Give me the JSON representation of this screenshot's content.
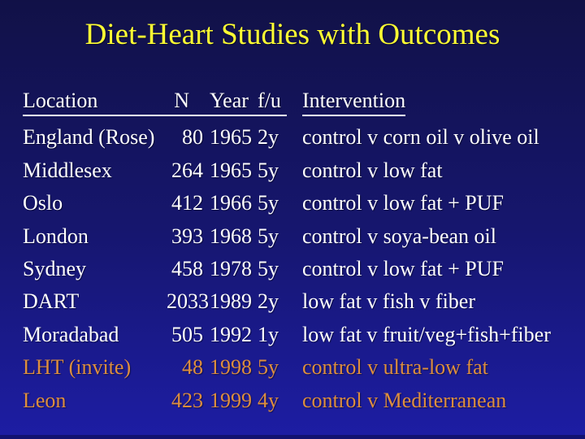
{
  "slide": {
    "title": "Diet-Heart Studies with Outcomes",
    "colors": {
      "title": "#ffff33",
      "body": "#ffffff",
      "highlight": "#dd8e3e"
    },
    "background": {
      "top": "#111147",
      "middle": "#16166e",
      "bottom": "#1d1da4"
    }
  },
  "table": {
    "headers": {
      "location": "Location",
      "n": "N",
      "year": "Year",
      "fu": "f/u",
      "intervention": "Intervention"
    },
    "rows": [
      {
        "location": "England (Rose)",
        "n": "80",
        "year": "1965",
        "fu": "2y",
        "intervention": "control v corn oil v olive oil",
        "highlight": false
      },
      {
        "location": "Middlesex",
        "n": "264",
        "year": "1965",
        "fu": "5y",
        "intervention": "control v low fat",
        "highlight": false
      },
      {
        "location": "Oslo",
        "n": "412",
        "year": "1966",
        "fu": "5y",
        "intervention": "control v low fat + PUF",
        "highlight": false
      },
      {
        "location": "London",
        "n": "393",
        "year": "1968",
        "fu": "5y",
        "intervention": "control v soya-bean oil",
        "highlight": false
      },
      {
        "location": "Sydney",
        "n": "458",
        "year": "1978",
        "fu": "5y",
        "intervention": "control v low fat + PUF",
        "highlight": false
      },
      {
        "location": "DART",
        "n": "2033",
        "year": "1989",
        "fu": "2y",
        "intervention": "low fat v fish v fiber",
        "highlight": false
      },
      {
        "location": "Moradabad",
        "n": "505",
        "year": "1992",
        "fu": "1y",
        "intervention": "low fat v fruit/veg+fish+fiber",
        "highlight": false
      },
      {
        "location": "LHT (invite)",
        "n": "48",
        "year": "1998",
        "fu": "5y",
        "intervention": "control v ultra-low fat",
        "highlight": true
      },
      {
        "location": "Leon",
        "n": "423",
        "year": "1999",
        "fu": "4y",
        "intervention": "control v Mediterranean",
        "highlight": true
      }
    ]
  }
}
